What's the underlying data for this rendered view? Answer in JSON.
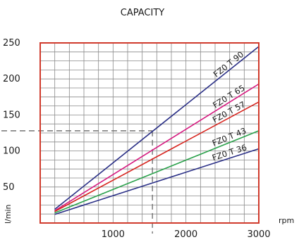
{
  "chart_data": {
    "type": "line",
    "title": "CAPACITY",
    "xlabel": "rpm",
    "ylabel": "l/min",
    "xlim": [
      0,
      3000
    ],
    "ylim": [
      0,
      250
    ],
    "x_ticks": [
      1000,
      2000,
      3000
    ],
    "y_ticks": [
      50,
      100,
      150,
      200,
      250
    ],
    "grid": true,
    "reference_point": {
      "x": 1540,
      "y": 128
    },
    "series": [
      {
        "name": "FZ0 T 90",
        "color": "#2a2f86",
        "x": [
          200,
          3000
        ],
        "y": [
          19,
          245
        ]
      },
      {
        "name": "FZ0 T 65",
        "color": "#d6197f",
        "x": [
          200,
          3000
        ],
        "y": [
          17,
          193
        ]
      },
      {
        "name": "FZ0 T 57",
        "color": "#d7251f",
        "x": [
          200,
          3000
        ],
        "y": [
          16,
          168
        ]
      },
      {
        "name": "FZ0 T 43",
        "color": "#2aa14b",
        "x": [
          200,
          3000
        ],
        "y": [
          14,
          128
        ]
      },
      {
        "name": "FZ0 T 36",
        "color": "#2a2f86",
        "x": [
          200,
          3000
        ],
        "y": [
          12,
          103
        ]
      }
    ]
  },
  "colors": {
    "frame": "#d03a2c",
    "grid": "#8a8a8a",
    "reference": "#666666"
  }
}
